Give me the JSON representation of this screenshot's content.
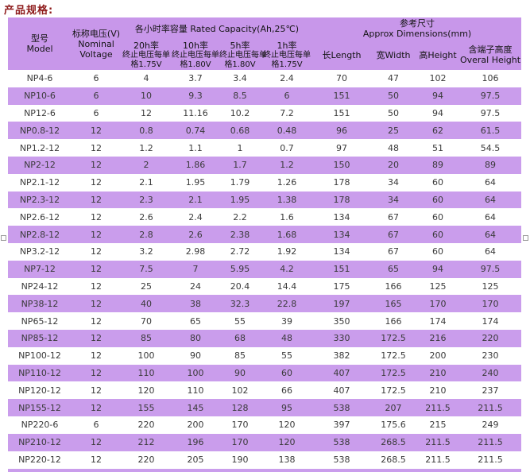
{
  "title": "产品规格:",
  "colors": {
    "header_bg": "#C897EA",
    "row_alt_bg": "#CA9DEC",
    "title_color": "#8E1B1B",
    "text_color": "#3A3A3A",
    "page_bg": "#FFFFFF"
  },
  "table": {
    "header": {
      "model_lines": [
        "型号",
        "Model"
      ],
      "voltage_lines": [
        "标称电压(V)",
        "Nominal",
        "Voltage"
      ],
      "capacity_group": "各小时率容量 Rated Capacity(Ah,25℃)",
      "rates": [
        {
          "line1": "20h率",
          "line2": "终止电压每单",
          "line3": "格1.75V"
        },
        {
          "line1": "10h率",
          "line2": "终止电压每单",
          "line3": "格1.80V"
        },
        {
          "line1": "5h率",
          "line2": "终止电压每单",
          "line3": "格1.80V"
        },
        {
          "line1": "1h率",
          "line2": "终止电压每单",
          "line3": "格1.75V"
        }
      ],
      "dims_group_lines": [
        "参考尺寸",
        "Approx Dimensions(mm)"
      ],
      "length": "长Length",
      "width": "宽Width",
      "height": "高Height",
      "overall_lines": [
        "含端子高度",
        "Overal Height"
      ]
    },
    "rows": [
      [
        "NP4-6",
        "6",
        "4",
        "3.7",
        "3.4",
        "2.4",
        "70",
        "47",
        "102",
        "106"
      ],
      [
        "NP10-6",
        "6",
        "10",
        "9.3",
        "8.5",
        "6",
        "151",
        "50",
        "94",
        "97.5"
      ],
      [
        "NP12-6",
        "6",
        "12",
        "11.16",
        "10.2",
        "7.2",
        "151",
        "50",
        "94",
        "97.5"
      ],
      [
        "NP0.8-12",
        "12",
        "0.8",
        "0.74",
        "0.68",
        "0.48",
        "96",
        "25",
        "62",
        "61.5"
      ],
      [
        "NP1.2-12",
        "12",
        "1.2",
        "1.1",
        "1",
        "0.7",
        "97",
        "48",
        "51",
        "54.5"
      ],
      [
        "NP2-12",
        "12",
        "2",
        "1.86",
        "1.7",
        "1.2",
        "150",
        "20",
        "89",
        "89"
      ],
      [
        "NP2.1-12",
        "12",
        "2.1",
        "1.95",
        "1.79",
        "1.26",
        "178",
        "34",
        "60",
        "64"
      ],
      [
        "NP2.3-12",
        "12",
        "2.3",
        "2.1",
        "1.95",
        "1.38",
        "178",
        "34",
        "60",
        "64"
      ],
      [
        "NP2.6-12",
        "12",
        "2.6",
        "2.4",
        "2.2",
        "1.6",
        "134",
        "67",
        "60",
        "64"
      ],
      [
        "NP2.8-12",
        "12",
        "2.8",
        "2.6",
        "2.38",
        "1.68",
        "134",
        "67",
        "60",
        "64"
      ],
      [
        "NP3.2-12",
        "12",
        "3.2",
        "2.98",
        "2.72",
        "1.92",
        "134",
        "67",
        "60",
        "64"
      ],
      [
        "NP7-12",
        "12",
        "7.5",
        "7",
        "5.95",
        "4.2",
        "151",
        "65",
        "94",
        "97.5"
      ],
      [
        "NP24-12",
        "12",
        "25",
        "24",
        "20.4",
        "14.4",
        "175",
        "166",
        "125",
        "125"
      ],
      [
        "NP38-12",
        "12",
        "40",
        "38",
        "32.3",
        "22.8",
        "197",
        "165",
        "170",
        "170"
      ],
      [
        "NP65-12",
        "12",
        "70",
        "65",
        "55",
        "39",
        "350",
        "166",
        "174",
        "174"
      ],
      [
        "NP85-12",
        "12",
        "85",
        "80",
        "68",
        "48",
        "330",
        "172.5",
        "216",
        "220"
      ],
      [
        "NP100-12",
        "12",
        "100",
        "90",
        "85",
        "55",
        "382",
        "172.5",
        "200",
        "230"
      ],
      [
        "NP110-12",
        "12",
        "110",
        "100",
        "90",
        "60",
        "407",
        "172.5",
        "210",
        "240"
      ],
      [
        "NP120-12",
        "12",
        "120",
        "110",
        "102",
        "66",
        "407",
        "172.5",
        "210",
        "237"
      ],
      [
        "NP155-12",
        "12",
        "155",
        "145",
        "128",
        "95",
        "538",
        "207",
        "211.5",
        "211.5"
      ],
      [
        "NP220-6",
        "6",
        "220",
        "200",
        "170",
        "120",
        "397",
        "175.6",
        "215",
        "249"
      ],
      [
        "NP210-12",
        "12",
        "212",
        "196",
        "170",
        "120",
        "538",
        "268.5",
        "211.5",
        "211.5"
      ],
      [
        "NP220-12",
        "12",
        "220",
        "205",
        "190",
        "138",
        "538",
        "268.5",
        "211.5",
        "211.5"
      ]
    ]
  }
}
